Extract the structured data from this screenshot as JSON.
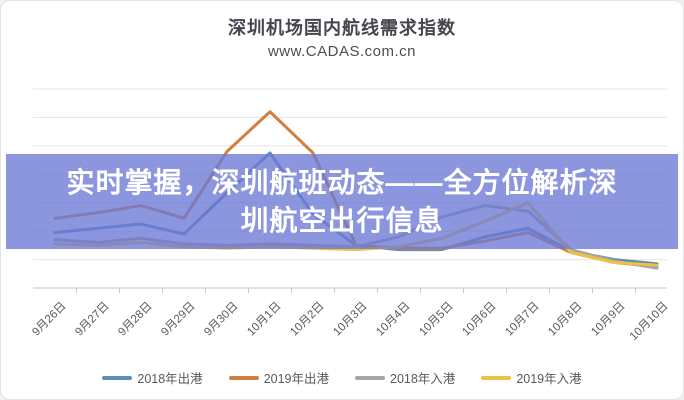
{
  "card": {
    "title": "深圳机场国内航线需求指数",
    "subtitle": "www.CADAS.com.cn"
  },
  "overlay": {
    "full_text": "实时掌握，深圳航班动态——全方位解析深圳航空出行信息",
    "lines": [
      "实时掌握，深圳航班动态——全方位解析深",
      "圳航空出行信息"
    ],
    "background_color": "#6c78d6",
    "text_color": "#ffffff"
  },
  "chart_data": {
    "type": "line",
    "title": "深圳机场国内航线需求指数",
    "subtitle": "www.CADAS.com.cn",
    "categories": [
      "9月26日",
      "9月27日",
      "9月28日",
      "9月29日",
      "9月30日",
      "10月1日",
      "10月2日",
      "10月3日",
      "10月4日",
      "10月5日",
      "10月6日",
      "10月7日",
      "10月8日",
      "10月9日",
      "10月10日"
    ],
    "series": [
      {
        "name": "2018年出港",
        "color": "#5b8db8",
        "values": [
          39,
          42,
          45,
          38,
          67,
          95,
          52,
          30,
          27,
          27,
          36,
          42,
          26,
          20,
          17
        ]
      },
      {
        "name": "2019年出港",
        "color": "#d07f40",
        "values": [
          49,
          53,
          58,
          49,
          96,
          124,
          95,
          30,
          28,
          28,
          33,
          39,
          25,
          18,
          15
        ]
      },
      {
        "name": "2018年入港",
        "color": "#a6a6a6",
        "values": [
          34,
          32,
          35,
          31,
          30,
          31,
          30,
          29,
          36,
          50,
          58,
          54,
          27,
          19,
          14
        ]
      },
      {
        "name": "2019年入港",
        "color": "#ecc23e",
        "values": [
          31,
          30,
          32,
          29,
          28,
          29,
          28,
          27,
          29,
          35,
          47,
          60,
          25,
          18,
          16
        ]
      }
    ],
    "ylim": [
      0,
      140
    ],
    "grid_step": 20,
    "grid": true,
    "y_axis_labels_visible": false,
    "legend_position": "bottom",
    "x_label_rotation": -45
  }
}
